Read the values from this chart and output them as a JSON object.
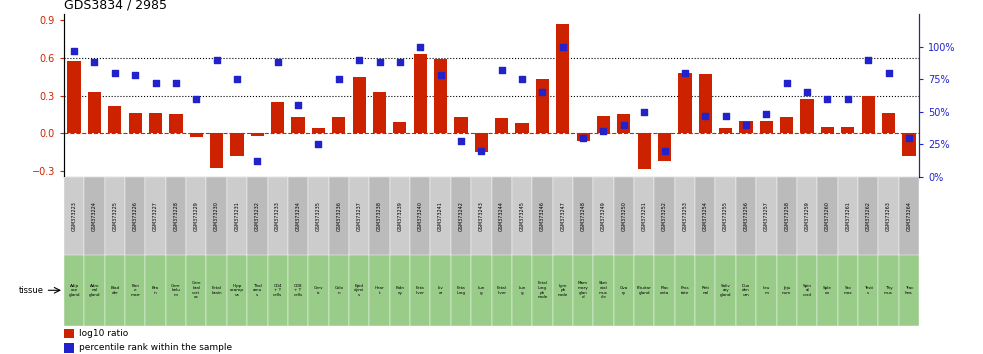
{
  "title": "GDS3834 / 2985",
  "gsm_labels": [
    "GSM373223",
    "GSM373224",
    "GSM373225",
    "GSM373226",
    "GSM373227",
    "GSM373228",
    "GSM373229",
    "GSM373230",
    "GSM373231",
    "GSM373232",
    "GSM373233",
    "GSM373234",
    "GSM373235",
    "GSM373236",
    "GSM373237",
    "GSM373238",
    "GSM373239",
    "GSM373240",
    "GSM373241",
    "GSM373242",
    "GSM373243",
    "GSM373244",
    "GSM373245",
    "GSM373246",
    "GSM373247",
    "GSM373248",
    "GSM373249",
    "GSM373250",
    "GSM373251",
    "GSM373252",
    "GSM373253",
    "GSM373254",
    "GSM373255",
    "GSM373256",
    "GSM373257",
    "GSM373258",
    "GSM373259",
    "GSM373260",
    "GSM373261",
    "GSM373262",
    "GSM373263",
    "GSM373264"
  ],
  "tissue_labels": [
    "Adip\nose\ngland",
    "Adre\nnal\ngland",
    "Blad\nder",
    "Bon\ne\nmarr",
    "Bra\nin",
    "Cere\nbelu\nm",
    "Cere\nbral\ncort\nex",
    "Fetal\nbrain",
    "Hipp\nocamp\nus",
    "Thal\namu\ns",
    "CD4\n+ T\ncells",
    "CD8\n+ T\ncells",
    "Cerv\nix",
    "Colo\nn",
    "Epid\ndymi\ns",
    "Hear\nt",
    "Kidn\ney",
    "Feta\nliver",
    "Liv\ner",
    "Feta\nlung",
    "Lun\ng",
    "Fetal\nliver",
    "Lun\ng",
    "Fetal\nlung\nph\nnode",
    "Lym\nph\nnode",
    "Mam\nmary\nglan\nd",
    "Sket\netal\nmus\ncle",
    "Ova\nry",
    "Pituitar\ngland",
    "Plac\nenta",
    "Pros\ntate",
    "Reti\nnal",
    "Saliv\nary\ngland",
    "Duo\nden\num",
    "Ileu\nm",
    "Jeju\nnum",
    "Spin\nal\ncord",
    "Sple\nen",
    "Sto\nmac",
    "Testi\ns",
    "Thy\nmus",
    "Trac\nhea"
  ],
  "log10_ratio": [
    0.58,
    0.33,
    0.22,
    0.16,
    0.16,
    0.15,
    -0.03,
    -0.28,
    -0.18,
    -0.02,
    0.25,
    0.13,
    0.04,
    0.13,
    0.45,
    0.33,
    0.09,
    0.63,
    0.59,
    0.13,
    -0.15,
    0.12,
    0.08,
    0.43,
    0.87,
    -0.06,
    0.14,
    0.15,
    -0.29,
    -0.22,
    0.48,
    0.47,
    0.04,
    0.1,
    0.1,
    0.13,
    0.27,
    0.05,
    0.05,
    0.3,
    0.16,
    -0.18
  ],
  "percentile": [
    97,
    88,
    80,
    78,
    72,
    72,
    60,
    90,
    75,
    12,
    88,
    55,
    25,
    75,
    90,
    88,
    88,
    100,
    78,
    28,
    20,
    82,
    75,
    65,
    100,
    30,
    35,
    40,
    50,
    20,
    80,
    47,
    47,
    40,
    48,
    72,
    65,
    60,
    60,
    90,
    80,
    30
  ],
  "bar_color": "#cc2200",
  "marker_color": "#2222cc",
  "ylim_left": [
    -0.35,
    0.95
  ],
  "ylim_right": [
    0,
    125
  ],
  "yticks_left": [
    -0.3,
    0.0,
    0.3,
    0.6,
    0.9
  ],
  "yticks_right": [
    0,
    25,
    50,
    75,
    100
  ],
  "hlines": [
    0.3,
    0.6
  ],
  "zero_line_color": "#cc2200",
  "legend_log10": "log10 ratio",
  "legend_pct": "percentile rank within the sample",
  "tissue_bg_color": "#99cc88",
  "gsm_bg_color": "#cccccc"
}
